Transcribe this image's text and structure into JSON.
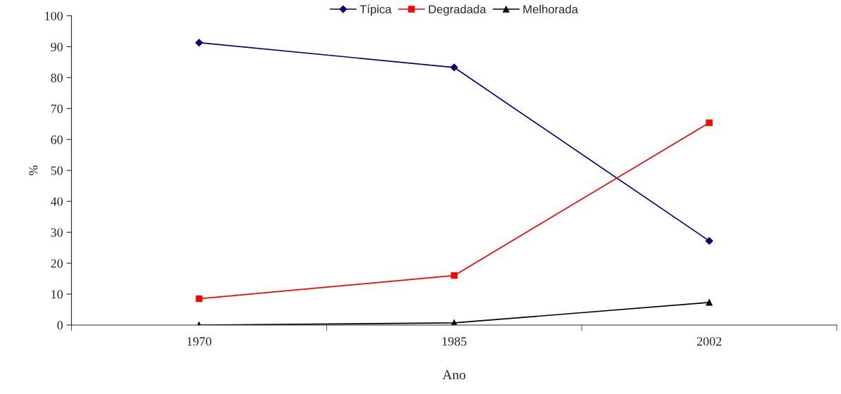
{
  "chart_data": {
    "type": "line",
    "xlabel": "Ano",
    "ylabel": "%",
    "categories": [
      "1970",
      "1985",
      "2002"
    ],
    "series": [
      {
        "name": "Típica",
        "color": "#000080",
        "marker": "diamond",
        "values": [
          91.3,
          83.3,
          27.2
        ]
      },
      {
        "name": "Degradada",
        "color": "#ff0000",
        "marker": "square",
        "values": [
          8.5,
          16.0,
          65.4
        ]
      },
      {
        "name": "Melhorada",
        "color": "#000000",
        "marker": "triangle",
        "values": [
          0,
          0.7,
          7.3
        ]
      }
    ],
    "ylim": [
      0,
      100
    ],
    "yticks": [
      0,
      10,
      20,
      30,
      40,
      50,
      60,
      70,
      80,
      90,
      100
    ],
    "grid": false,
    "legend": "top",
    "line_style": "solid"
  }
}
